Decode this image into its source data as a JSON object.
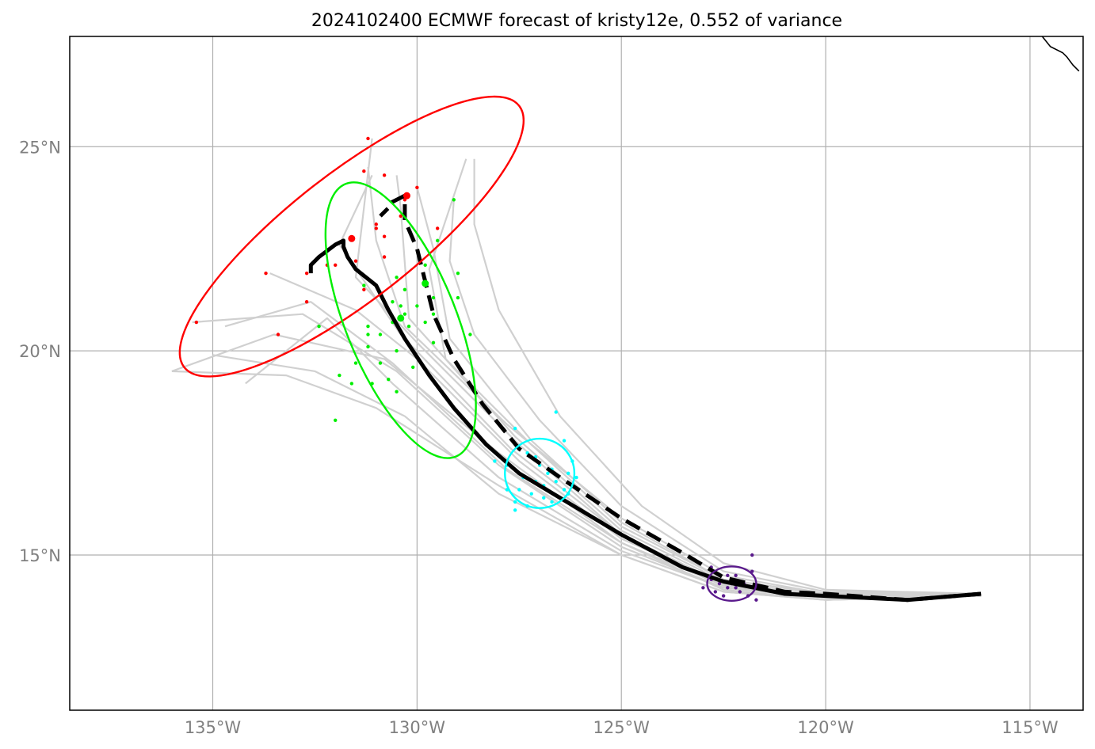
{
  "chart_data": {
    "type": "map-track",
    "title": "2024102400 ECMWF forecast of kristy12e, 0.552 of variance",
    "xlim": [
      -138.5,
      -113.7
    ],
    "ylim": [
      11.2,
      27.7
    ],
    "x_ticks": [
      {
        "value": -135,
        "label": "135°W"
      },
      {
        "value": -130,
        "label": "130°W"
      },
      {
        "value": -125,
        "label": "125°W"
      },
      {
        "value": -120,
        "label": "120°W"
      },
      {
        "value": -115,
        "label": "115°W"
      }
    ],
    "y_ticks": [
      {
        "value": 15,
        "label": "15°N"
      },
      {
        "value": 20,
        "label": "20°N"
      },
      {
        "value": 25,
        "label": "25°N"
      }
    ],
    "grid": true,
    "colors": {
      "ensemble": "#d0d0d0",
      "mean_track": "#000000",
      "ellipse_1": "#ff0000",
      "ellipse_2": "#00ee00",
      "ellipse_3": "#00ffff",
      "ellipse_4": "#5a1a8c",
      "grid": "#b0b0b0"
    },
    "solid_track": [
      [
        -116.2,
        14.05
      ],
      [
        -118.0,
        13.9
      ],
      [
        -120.0,
        14.0
      ],
      [
        -121.0,
        14.05
      ],
      [
        -122.5,
        14.35
      ],
      [
        -123.5,
        14.7
      ],
      [
        -125.0,
        15.5
      ],
      [
        -126.5,
        16.4
      ],
      [
        -127.5,
        17.0
      ],
      [
        -128.3,
        17.7
      ],
      [
        -129.1,
        18.6
      ],
      [
        -129.7,
        19.4
      ],
      [
        -130.3,
        20.3
      ],
      [
        -130.7,
        21.0
      ],
      [
        -131.0,
        21.6
      ],
      [
        -131.5,
        22.0
      ],
      [
        -131.7,
        22.3
      ],
      [
        -131.8,
        22.55
      ],
      [
        -131.8,
        22.7
      ],
      [
        -132.0,
        22.6
      ],
      [
        -132.4,
        22.3
      ],
      [
        -132.6,
        22.1
      ],
      [
        -132.6,
        21.9
      ]
    ],
    "dashed_track": [
      [
        -116.2,
        14.05
      ],
      [
        -118.0,
        13.9
      ],
      [
        -120.0,
        14.05
      ],
      [
        -121.0,
        14.1
      ],
      [
        -122.5,
        14.45
      ],
      [
        -123.5,
        15.05
      ],
      [
        -125.0,
        15.9
      ],
      [
        -126.5,
        16.9
      ],
      [
        -127.5,
        17.6
      ],
      [
        -128.4,
        18.7
      ],
      [
        -129.1,
        19.8
      ],
      [
        -129.6,
        20.9
      ],
      [
        -129.8,
        21.7
      ],
      [
        -130.0,
        22.5
      ],
      [
        -130.3,
        23.2
      ],
      [
        -130.3,
        23.6
      ],
      [
        -130.3,
        23.8
      ],
      [
        -130.5,
        23.7
      ],
      [
        -130.7,
        23.6
      ],
      [
        -130.7,
        23.5
      ],
      [
        -130.9,
        23.3
      ]
    ],
    "ellipses": [
      {
        "name": "red",
        "cx": -131.6,
        "cy": 22.8,
        "rx": 5.2,
        "ry": 1.55,
        "angle_deg": 38,
        "color": "#ff0000"
      },
      {
        "name": "green",
        "cx": -130.4,
        "cy": 20.75,
        "rx": 1.35,
        "ry": 3.6,
        "angle_deg": 22,
        "color": "#00ee00"
      },
      {
        "name": "cyan",
        "cx": -127.0,
        "cy": 17.0,
        "rx": 0.85,
        "ry": 0.85,
        "angle_deg": 0,
        "color": "#00ffff"
      },
      {
        "name": "purple",
        "cx": -122.3,
        "cy": 14.3,
        "rx": 0.6,
        "ry": 0.42,
        "angle_deg": 0,
        "color": "#5a1a8c"
      }
    ],
    "red_points": [
      [
        -131.2,
        25.2
      ],
      [
        -130.8,
        24.3
      ],
      [
        -131.3,
        24.4
      ],
      [
        -130.0,
        24.0
      ],
      [
        -130.4,
        23.3
      ],
      [
        -131.0,
        23.0
      ],
      [
        -131.0,
        23.1
      ],
      [
        -130.3,
        23.7
      ],
      [
        -129.5,
        23.0
      ],
      [
        -130.8,
        22.8
      ],
      [
        -131.5,
        22.2
      ],
      [
        -132.0,
        22.1
      ],
      [
        -133.7,
        21.9
      ],
      [
        -132.7,
        21.9
      ],
      [
        -132.2,
        22.1
      ],
      [
        -131.3,
        21.5
      ],
      [
        -132.7,
        21.2
      ],
      [
        -133.4,
        20.4
      ],
      [
        -135.4,
        20.7
      ],
      [
        -130.8,
        22.3
      ]
    ],
    "red_centers": [
      [
        -131.6,
        22.75
      ],
      [
        -130.25,
        23.8
      ]
    ],
    "green_points": [
      [
        -129.5,
        22.7
      ],
      [
        -129.8,
        22.1
      ],
      [
        -129.0,
        21.9
      ],
      [
        -130.5,
        21.8
      ],
      [
        -130.3,
        21.5
      ],
      [
        -131.3,
        21.6
      ],
      [
        -129.6,
        21.3
      ],
      [
        -129.0,
        21.3
      ],
      [
        -130.4,
        21.1
      ],
      [
        -130.6,
        21.2
      ],
      [
        -130.3,
        20.9
      ],
      [
        -130.0,
        21.1
      ],
      [
        -129.6,
        20.9
      ],
      [
        -130.6,
        20.7
      ],
      [
        -131.2,
        20.6
      ],
      [
        -130.2,
        20.6
      ],
      [
        -129.8,
        20.7
      ],
      [
        -128.7,
        20.4
      ],
      [
        -131.2,
        20.4
      ],
      [
        -130.9,
        20.4
      ],
      [
        -130.5,
        20.0
      ],
      [
        -131.2,
        20.1
      ],
      [
        -131.5,
        19.7
      ],
      [
        -130.9,
        19.7
      ],
      [
        -130.1,
        19.6
      ],
      [
        -131.9,
        19.4
      ],
      [
        -130.7,
        19.3
      ],
      [
        -131.6,
        19.2
      ],
      [
        -130.5,
        19.0
      ],
      [
        -132.4,
        20.6
      ],
      [
        -132.0,
        18.3
      ],
      [
        -129.1,
        23.7
      ],
      [
        -131.1,
        19.2
      ],
      [
        -129.6,
        20.2
      ]
    ],
    "green_centers": [
      [
        -129.8,
        21.65
      ],
      [
        -130.4,
        20.8
      ]
    ],
    "cyan_points": [
      [
        -126.6,
        18.5
      ],
      [
        -126.4,
        17.8
      ],
      [
        -127.6,
        18.1
      ],
      [
        -128.1,
        17.3
      ],
      [
        -127.8,
        17.2
      ],
      [
        -127.3,
        17.5
      ],
      [
        -127.1,
        17.4
      ],
      [
        -127.0,
        17.2
      ],
      [
        -126.7,
        17.1
      ],
      [
        -126.3,
        17.0
      ],
      [
        -126.1,
        16.9
      ],
      [
        -127.4,
        16.9
      ],
      [
        -127.1,
        16.8
      ],
      [
        -126.9,
        16.7
      ],
      [
        -126.6,
        16.8
      ],
      [
        -126.4,
        16.6
      ],
      [
        -127.5,
        16.6
      ],
      [
        -127.2,
        16.5
      ],
      [
        -126.9,
        16.4
      ],
      [
        -126.7,
        16.3
      ],
      [
        -127.6,
        16.3
      ],
      [
        -127.8,
        16.6
      ],
      [
        -126.8,
        17.0
      ],
      [
        -127.3,
        16.2
      ],
      [
        -126.2,
        17.3
      ],
      [
        -127.6,
        16.1
      ],
      [
        -126.3,
        16.5
      ]
    ],
    "purple_points": [
      [
        -121.8,
        15.0
      ],
      [
        -122.8,
        14.7
      ],
      [
        -121.8,
        14.6
      ],
      [
        -122.4,
        14.5
      ],
      [
        -122.2,
        14.5
      ],
      [
        -122.6,
        14.3
      ],
      [
        -122.3,
        14.3
      ],
      [
        -122.0,
        14.3
      ],
      [
        -122.7,
        14.1
      ],
      [
        -122.4,
        14.2
      ],
      [
        -122.1,
        14.1
      ],
      [
        -122.8,
        14.4
      ],
      [
        -121.9,
        14.0
      ],
      [
        -122.5,
        14.0
      ],
      [
        -123.0,
        14.2
      ],
      [
        -121.7,
        13.9
      ],
      [
        -122.3,
        14.4
      ],
      [
        -122.2,
        14.2
      ]
    ],
    "ensemble_tracks": [
      [
        [
          -116.2,
          14.0
        ],
        [
          -120,
          13.95
        ],
        [
          -122.5,
          14.2
        ],
        [
          -125,
          15.2
        ],
        [
          -128,
          17.2
        ],
        [
          -130.5,
          19.5
        ],
        [
          -132.8,
          20.9
        ],
        [
          -135.5,
          20.7
        ]
      ],
      [
        [
          -116.2,
          14.0
        ],
        [
          -120,
          13.9
        ],
        [
          -122.5,
          14.15
        ],
        [
          -125,
          15.3
        ],
        [
          -128,
          17.5
        ],
        [
          -130.8,
          19.8
        ],
        [
          -133.5,
          20.4
        ],
        [
          -136.0,
          19.5
        ]
      ],
      [
        [
          -116.2,
          14.05
        ],
        [
          -120,
          14.0
        ],
        [
          -122.5,
          14.25
        ],
        [
          -125,
          15.5
        ],
        [
          -127.5,
          17.7
        ],
        [
          -130,
          20.2
        ],
        [
          -131.5,
          21.8
        ],
        [
          -131.1,
          25.2
        ]
      ],
      [
        [
          -116.2,
          14.05
        ],
        [
          -120,
          14.05
        ],
        [
          -122.5,
          14.4
        ],
        [
          -125,
          15.7
        ],
        [
          -127.2,
          17.7
        ],
        [
          -129.3,
          19.8
        ],
        [
          -129.7,
          22.0
        ],
        [
          -128.8,
          24.7
        ]
      ],
      [
        [
          -116.2,
          14.0
        ],
        [
          -120,
          14.0
        ],
        [
          -122.5,
          14.3
        ],
        [
          -125,
          15.4
        ],
        [
          -127.5,
          17.3
        ],
        [
          -130.0,
          19.8
        ],
        [
          -131.5,
          21.0
        ],
        [
          -133.6,
          21.9
        ]
      ],
      [
        [
          -116.2,
          14.0
        ],
        [
          -120,
          13.95
        ],
        [
          -122.5,
          14.2
        ],
        [
          -125,
          15.1
        ],
        [
          -128,
          16.9
        ],
        [
          -130.6,
          19.2
        ],
        [
          -132.2,
          20.8
        ],
        [
          -134.2,
          19.2
        ]
      ],
      [
        [
          -116.2,
          14.05
        ],
        [
          -120,
          14.1
        ],
        [
          -122.5,
          14.6
        ],
        [
          -125,
          16.2
        ],
        [
          -127,
          18.3
        ],
        [
          -128.6,
          20.4
        ],
        [
          -129.2,
          22.2
        ],
        [
          -129.1,
          23.7
        ]
      ],
      [
        [
          -116.2,
          14.0
        ],
        [
          -120,
          14.0
        ],
        [
          -122.5,
          14.35
        ],
        [
          -125,
          15.6
        ],
        [
          -127.6,
          17.9
        ],
        [
          -130.2,
          20.8
        ],
        [
          -130.4,
          23.5
        ],
        [
          -130.5,
          24.3
        ]
      ],
      [
        [
          -116.2,
          14.0
        ],
        [
          -120,
          13.9
        ],
        [
          -122.5,
          14.1
        ],
        [
          -125,
          15.0
        ],
        [
          -128,
          16.5
        ],
        [
          -130.3,
          18.4
        ],
        [
          -132.5,
          19.5
        ],
        [
          -135.0,
          19.9
        ]
      ],
      [
        [
          -116.2,
          14.05
        ],
        [
          -120,
          14.05
        ],
        [
          -122.5,
          14.5
        ],
        [
          -125,
          15.9
        ],
        [
          -127.8,
          18.2
        ],
        [
          -130.3,
          20.6
        ],
        [
          -131.0,
          22.7
        ],
        [
          -131.2,
          24.5
        ]
      ],
      [
        [
          -116.2,
          14.0
        ],
        [
          -120,
          13.9
        ],
        [
          -122.5,
          14.1
        ],
        [
          -125,
          15.0
        ],
        [
          -128,
          16.7
        ],
        [
          -131.0,
          18.6
        ],
        [
          -133.2,
          19.4
        ],
        [
          -136.0,
          19.5
        ]
      ],
      [
        [
          -116.2,
          14.05
        ],
        [
          -120,
          14.05
        ],
        [
          -122.5,
          14.4
        ],
        [
          -125,
          15.8
        ],
        [
          -127.2,
          17.8
        ],
        [
          -129.2,
          20.3
        ],
        [
          -129.6,
          22.5
        ],
        [
          -130.0,
          24.0
        ]
      ],
      [
        [
          -116.2,
          14.05
        ],
        [
          -120,
          14.15
        ],
        [
          -122.5,
          14.8
        ],
        [
          -124.5,
          16.2
        ],
        [
          -126.5,
          18.4
        ],
        [
          -128.0,
          21.0
        ],
        [
          -128.6,
          23.1
        ],
        [
          -128.6,
          24.7
        ]
      ],
      [
        [
          -116.2,
          14.0
        ],
        [
          -120,
          13.95
        ],
        [
          -122.5,
          14.25
        ],
        [
          -125,
          15.3
        ],
        [
          -127.8,
          17.1
        ],
        [
          -130.6,
          19.7
        ],
        [
          -132.6,
          21.2
        ],
        [
          -134.7,
          20.6
        ]
      ],
      [
        [
          -116.2,
          14.0
        ],
        [
          -120,
          14.0
        ],
        [
          -122.5,
          14.3
        ],
        [
          -125,
          15.5
        ],
        [
          -127.7,
          17.6
        ],
        [
          -130.4,
          20.4
        ],
        [
          -131.9,
          22.6
        ],
        [
          -131.1,
          24.3
        ]
      ]
    ],
    "coastline": [
      [
        -115.0,
        27.8
      ],
      [
        -114.7,
        27.7
      ],
      [
        -114.5,
        27.45
      ],
      [
        -114.2,
        27.3
      ],
      [
        -114.1,
        27.2
      ],
      [
        -113.95,
        27.0
      ],
      [
        -113.8,
        26.85
      ]
    ]
  }
}
